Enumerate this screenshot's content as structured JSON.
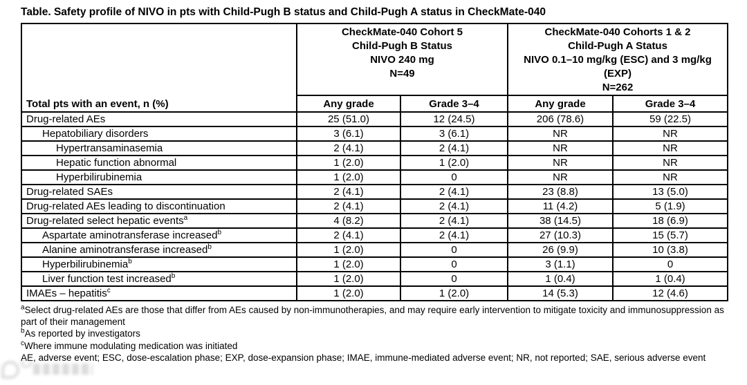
{
  "title": "Table. Safety profile of NIVO in pts with Child-Pugh B status and Child-Pugh A status in CheckMate-040",
  "table": {
    "row_header": "Total pts with an event, n (%)",
    "col_groups": [
      {
        "lines": [
          "CheckMate-040 Cohort 5",
          "Child-Pugh B Status",
          "NIVO 240 mg",
          "N=49"
        ]
      },
      {
        "lines": [
          "CheckMate-040 Cohorts 1 & 2",
          "Child-Pugh A Status",
          "NIVO 0.1–10 mg/kg (ESC) and 3 mg/kg (EXP)",
          "N=262"
        ]
      }
    ],
    "sub_headers": [
      "Any grade",
      "Grade 3–4",
      "Any grade",
      "Grade 3–4"
    ],
    "rows": [
      {
        "label": "Drug-related AEs",
        "sup": "",
        "indent": 0,
        "values": [
          "25 (51.0)",
          "12 (24.5)",
          "206 (78.6)",
          "59 (22.5)"
        ]
      },
      {
        "label": "Hepatobiliary disorders",
        "sup": "",
        "indent": 1,
        "values": [
          "3 (6.1)",
          "3 (6.1)",
          "NR",
          "NR"
        ]
      },
      {
        "label": "Hypertransaminasemia",
        "sup": "",
        "indent": 2,
        "values": [
          "2 (4.1)",
          "2 (4.1)",
          "NR",
          "NR"
        ]
      },
      {
        "label": "Hepatic function abnormal",
        "sup": "",
        "indent": 2,
        "values": [
          "1 (2.0)",
          "1 (2.0)",
          "NR",
          "NR"
        ]
      },
      {
        "label": "Hyperbilirubinemia",
        "sup": "",
        "indent": 2,
        "values": [
          "1 (2.0)",
          "0",
          "NR",
          "NR"
        ]
      },
      {
        "label": "Drug-related SAEs",
        "sup": "",
        "indent": 0,
        "values": [
          "2 (4.1)",
          "2 (4.1)",
          "23 (8.8)",
          "13 (5.0)"
        ]
      },
      {
        "label": "Drug-related AEs leading to discontinuation",
        "sup": "",
        "indent": 0,
        "values": [
          "2 (4.1)",
          "2 (4.1)",
          "11 (4.2)",
          "5 (1.9)"
        ]
      },
      {
        "label": "Drug-related select hepatic events",
        "sup": "a",
        "indent": 0,
        "values": [
          "4 (8.2)",
          "2 (4.1)",
          "38 (14.5)",
          "18 (6.9)"
        ]
      },
      {
        "label": "Aspartate aminotransferase increased",
        "sup": "b",
        "indent": 1,
        "values": [
          "2 (4.1)",
          "2 (4.1)",
          "27 (10.3)",
          "15 (5.7)"
        ]
      },
      {
        "label": "Alanine aminotransferase increased",
        "sup": "b",
        "indent": 1,
        "values": [
          "1 (2.0)",
          "0",
          "26 (9.9)",
          "10 (3.8)"
        ]
      },
      {
        "label": "Hyperbilirubinemia",
        "sup": "b",
        "indent": 1,
        "values": [
          "1 (2.0)",
          "0",
          "3 (1.1)",
          "0"
        ]
      },
      {
        "label": "Liver function test increased",
        "sup": "b",
        "indent": 1,
        "values": [
          "1 (2.0)",
          "0",
          "1 (0.4)",
          "1 (0.4)"
        ]
      },
      {
        "label": "IMAEs – hepatitis",
        "sup": "c",
        "indent": 0,
        "values": [
          "1 (2.0)",
          "1 (2.0)",
          "14 (5.3)",
          "12 (4.6)"
        ]
      }
    ]
  },
  "footnotes": [
    {
      "sup": "a",
      "text": "Select drug-related AEs are those that differ from AEs caused by non-immunotherapies, and may require early intervention to mitigate toxicity and immunosuppression as part of their management"
    },
    {
      "sup": "b",
      "text": "As reported by investigators"
    },
    {
      "sup": "c",
      "text": "Where immune modulating medication was initiated"
    },
    {
      "sup": "",
      "text": "AE, adverse event; ESC, dose-escalation phase; EXP, dose-expansion phase; IMAE, immune-mediated adverse event; NR, not reported; SAE, serious adverse event"
    }
  ],
  "colors": {
    "text": "#000000",
    "border": "#000000",
    "background": "#ffffff",
    "watermark": "#9a9a9a"
  }
}
